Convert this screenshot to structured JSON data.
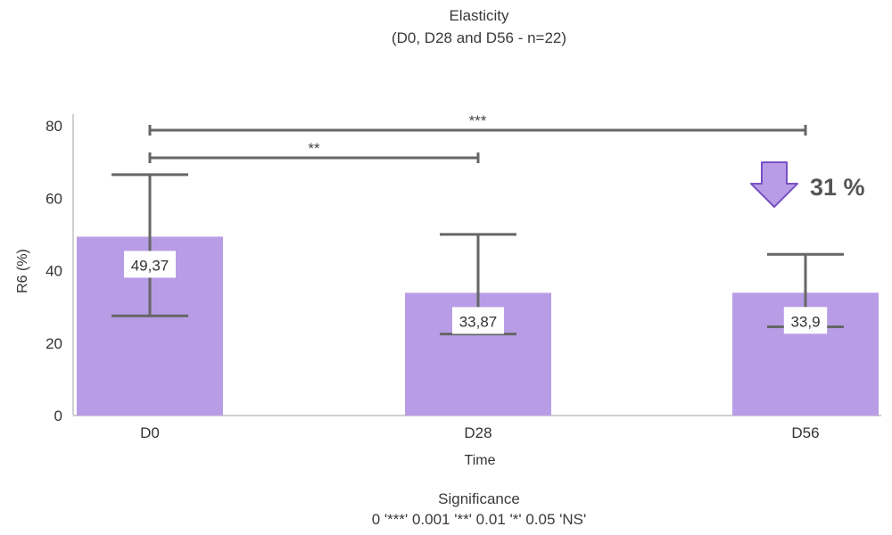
{
  "chart_data": {
    "type": "bar",
    "title": "Elasticity",
    "subtitle": "(D0, D28 and D56 - n=22)",
    "xlabel": "Time",
    "ylabel": "R6 (%)",
    "categories": [
      "D0",
      "D28",
      "D56"
    ],
    "values": [
      49.37,
      33.87,
      33.9
    ],
    "data_labels": [
      "49,37",
      "33,87",
      "33,9"
    ],
    "error_bars": [
      {
        "low": 27.5,
        "high": 66.5
      },
      {
        "low": 22.5,
        "high": 50.0
      },
      {
        "low": 24.5,
        "high": 44.5
      }
    ],
    "ylim": [
      0,
      80
    ],
    "yticks": [
      0,
      20,
      40,
      60,
      80
    ],
    "grid": false,
    "bar_color": "#b89de6",
    "errorbar_color": "#666666",
    "significance": [
      {
        "from": 0,
        "to": 2,
        "label": "***"
      },
      {
        "from": 0,
        "to": 1,
        "label": "**"
      }
    ],
    "annotation": {
      "text": "31 %",
      "arrow": "down",
      "arrow_color": "#b89de6",
      "arrow_stroke": "#7b4fc4"
    }
  },
  "legend_note": {
    "title": "Significance",
    "text": "0 '***' 0.001 '**' 0.01 '*' 0.05 'NS'"
  }
}
